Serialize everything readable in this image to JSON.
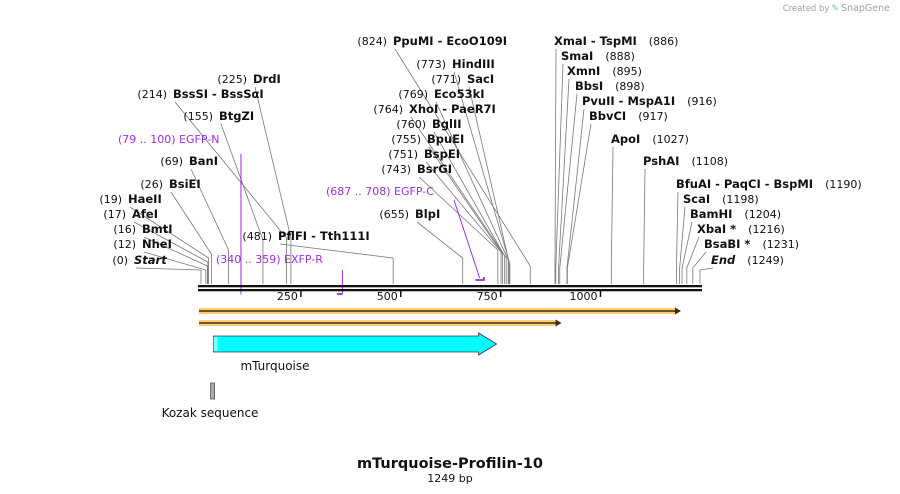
{
  "credit": {
    "prefix": "Created by",
    "icon": "snapgene-logo-icon",
    "brand": "SnapGene"
  },
  "map": {
    "title": "mTurquoise-Profilin-10",
    "length_label": "1249 bp",
    "length_bp": 1249,
    "scale_ticks": [
      {
        "bp": 250,
        "label": "250"
      },
      {
        "bp": 500,
        "label": "500"
      },
      {
        "bp": 750,
        "label": "750"
      },
      {
        "bp": 1000,
        "label": "1000"
      }
    ]
  },
  "sites": [
    {
      "pos": 0,
      "pos_label": "(0)",
      "name": "Start",
      "italic": true
    },
    {
      "pos": 12,
      "pos_label": "(12)",
      "name": "NheI"
    },
    {
      "pos": 16,
      "pos_label": "(16)",
      "name": "BmtI"
    },
    {
      "pos": 17,
      "pos_label": "(17)",
      "name": "AfeI"
    },
    {
      "pos": 19,
      "pos_label": "(19)",
      "name": "HaeII"
    },
    {
      "pos": 26,
      "pos_label": "(26)",
      "name": "BsiEI"
    },
    {
      "pos": 69,
      "pos_label": "(69)",
      "name": "BanI"
    },
    {
      "pos": 155,
      "pos_label": "(155)",
      "name": "BtgZI"
    },
    {
      "pos": 214,
      "pos_label": "(214)",
      "name": "BssSI - BssSαI"
    },
    {
      "pos": 225,
      "pos_label": "(225)",
      "name": "DrdI"
    },
    {
      "pos": 481,
      "pos_label": "(481)",
      "name": "PflFI - Tth111I"
    },
    {
      "pos": 655,
      "pos_label": "(655)",
      "name": "BlpI"
    },
    {
      "pos": 743,
      "pos_label": "(743)",
      "name": "BsrGI"
    },
    {
      "pos": 751,
      "pos_label": "(751)",
      "name": "BspEI"
    },
    {
      "pos": 755,
      "pos_label": "(755)",
      "name": "BpuEI"
    },
    {
      "pos": 760,
      "pos_label": "(760)",
      "name": "BglII"
    },
    {
      "pos": 764,
      "pos_label": "(764)",
      "name": "XhoI - PaeR7I"
    },
    {
      "pos": 769,
      "pos_label": "(769)",
      "name": "Eco53kI"
    },
    {
      "pos": 771,
      "pos_label": "(771)",
      "name": "SacI"
    },
    {
      "pos": 773,
      "pos_label": "(773)",
      "name": "HindIII"
    },
    {
      "pos": 824,
      "pos_label": "(824)",
      "name": "PpuMI - EcoO109I"
    },
    {
      "pos": 886,
      "pos_label": "(886)",
      "name": "XmaI - TspMI"
    },
    {
      "pos": 888,
      "pos_label": "(888)",
      "name": "SmaI"
    },
    {
      "pos": 895,
      "pos_label": "(895)",
      "name": "XmnI"
    },
    {
      "pos": 898,
      "pos_label": "(898)",
      "name": "BbsI"
    },
    {
      "pos": 916,
      "pos_label": "(916)",
      "name": "PvuII - MspA1I"
    },
    {
      "pos": 917,
      "pos_label": "(917)",
      "name": "BbvCI"
    },
    {
      "pos": 1027,
      "pos_label": "(1027)",
      "name": "ApoI"
    },
    {
      "pos": 1108,
      "pos_label": "(1108)",
      "name": "PshAI"
    },
    {
      "pos": 1190,
      "pos_label": "(1190)",
      "name": "BfuAI - PaqCI - BspMI"
    },
    {
      "pos": 1198,
      "pos_label": "(1198)",
      "name": "ScaI"
    },
    {
      "pos": 1204,
      "pos_label": "(1204)",
      "name": "BamHI"
    },
    {
      "pos": 1216,
      "pos_label": "(1216)",
      "name": "XbaI *"
    },
    {
      "pos": 1231,
      "pos_label": "(1231)",
      "name": "BsaBI *"
    },
    {
      "pos": 1249,
      "pos_label": "(1249)",
      "name": "End",
      "italic": true
    }
  ],
  "primers": [
    {
      "range_label": "(79 .. 100)",
      "name": "EGFP-N",
      "start": 79,
      "end": 100,
      "strand": "forward"
    },
    {
      "range_label": "(687 .. 708)",
      "name": "EGFP-C",
      "start": 687,
      "end": 708,
      "strand": "forward"
    },
    {
      "range_label": "(340 .. 359)",
      "name": "EXFP-R",
      "start": 340,
      "end": 359,
      "strand": "reverse"
    }
  ],
  "features": [
    {
      "name": "mTurquoise",
      "start": 31,
      "end": 750,
      "color": "#00ffff",
      "show_label": true
    },
    {
      "name": "Kozak sequence",
      "start": 24,
      "end": 33,
      "color": "#aaaaaa",
      "show_label": true
    }
  ],
  "orfs": [
    {
      "start": 0,
      "end": 1199,
      "color": "#ffa500"
    },
    {
      "start": 0,
      "end": 900,
      "color": "#ffa500"
    }
  ]
}
